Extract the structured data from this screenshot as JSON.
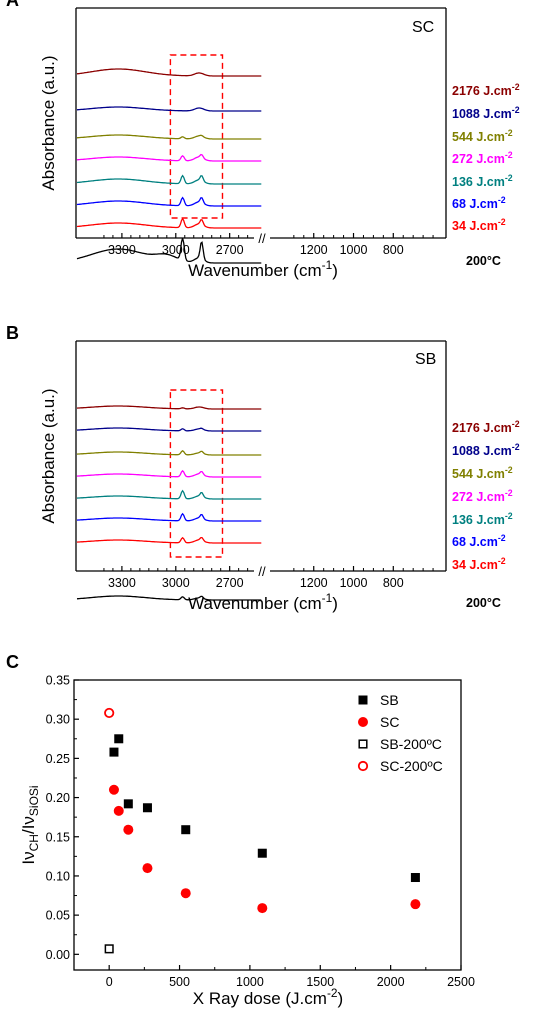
{
  "chart_data": [
    {
      "panel": "A",
      "type": "line",
      "tag": "SC",
      "xlabel": "Wavenumber (cm",
      "xlabel_sup": "-1",
      "xlabel_close": ")",
      "ylabel": "Absorbance (a.u.)",
      "axis_break": "//",
      "x_ranges": [
        [
          3550,
          2520
        ],
        [
          1440,
          540
        ]
      ],
      "xticks_left": [
        3300,
        3000,
        2700
      ],
      "xticks_right": [
        1200,
        1000,
        800
      ],
      "series": [
        {
          "name": "2176 J.cm",
          "sup": "-2",
          "color": "#8b0000"
        },
        {
          "name": "1088 J.cm",
          "sup": "-2",
          "color": "#00008b"
        },
        {
          "name": "544 J.cm",
          "sup": "-2",
          "color": "#808000"
        },
        {
          "name": "272 J.cm",
          "sup": "-2",
          "color": "#ff00ff"
        },
        {
          "name": "136 J.cm",
          "sup": "-2",
          "color": "#008080"
        },
        {
          "name": "68 J.cm",
          "sup": "-2",
          "color": "#0000ff"
        },
        {
          "name": "34 J.cm",
          "sup": "-2",
          "color": "#ff0000"
        },
        {
          "name": "200°C",
          "sup": "",
          "color": "#000000"
        }
      ]
    },
    {
      "panel": "B",
      "type": "line",
      "tag": "SB",
      "xlabel": "Wavenumber (cm",
      "xlabel_sup": "-1",
      "xlabel_close": ")",
      "ylabel": "Absorbance (a.u.)",
      "axis_break": "//",
      "x_ranges": [
        [
          3550,
          2520
        ],
        [
          1440,
          540
        ]
      ],
      "xticks_left": [
        3300,
        3000,
        2700
      ],
      "xticks_right": [
        1200,
        1000,
        800
      ],
      "series": [
        {
          "name": "2176 J.cm",
          "sup": "-2",
          "color": "#8b0000"
        },
        {
          "name": "1088 J.cm",
          "sup": "-2",
          "color": "#00008b"
        },
        {
          "name": "544 J.cm",
          "sup": "-2",
          "color": "#808000"
        },
        {
          "name": "272 J.cm",
          "sup": "-2",
          "color": "#ff00ff"
        },
        {
          "name": "136 J.cm",
          "sup": "-2",
          "color": "#008080"
        },
        {
          "name": "68 J.cm",
          "sup": "-2",
          "color": "#0000ff"
        },
        {
          "name": "34 J.cm",
          "sup": "-2",
          "color": "#ff0000"
        },
        {
          "name": "200°C",
          "sup": "",
          "color": "#000000"
        }
      ]
    },
    {
      "panel": "C",
      "type": "scatter",
      "xlabel": "X Ray dose (J.cm",
      "xlabel_sup": "-2",
      "xlabel_close": ")",
      "ylabel_parts": [
        "Iν",
        "CH",
        "/Iν",
        "SiOSi"
      ],
      "xlim": [
        -250,
        2500
      ],
      "ylim": [
        -0.02,
        0.35
      ],
      "xticks": [
        0,
        500,
        1000,
        1500,
        2000,
        2500
      ],
      "yticks": [
        "0.00",
        "0.05",
        "0.10",
        "0.15",
        "0.20",
        "0.25",
        "0.30",
        "0.35"
      ],
      "legend_position": "top-right",
      "series": [
        {
          "name": "SB",
          "marker": "filled-square",
          "color": "#000000",
          "points": [
            [
              34,
              0.258
            ],
            [
              68,
              0.275
            ],
            [
              136,
              0.192
            ],
            [
              272,
              0.187
            ],
            [
              544,
              0.159
            ],
            [
              1088,
              0.129
            ],
            [
              2176,
              0.098
            ]
          ]
        },
        {
          "name": "SC",
          "marker": "filled-circle",
          "color": "#ff0000",
          "points": [
            [
              34,
              0.21
            ],
            [
              68,
              0.183
            ],
            [
              136,
              0.159
            ],
            [
              272,
              0.11
            ],
            [
              544,
              0.078
            ],
            [
              1088,
              0.059
            ],
            [
              2176,
              0.064
            ]
          ]
        },
        {
          "name": "SB-200ºC",
          "marker": "open-square",
          "color": "#000000",
          "points": [
            [
              0,
              0.007
            ]
          ]
        },
        {
          "name": "SC-200ºC",
          "marker": "open-circle",
          "color": "#ff0000",
          "points": [
            [
              0,
              0.308
            ]
          ]
        }
      ]
    }
  ]
}
